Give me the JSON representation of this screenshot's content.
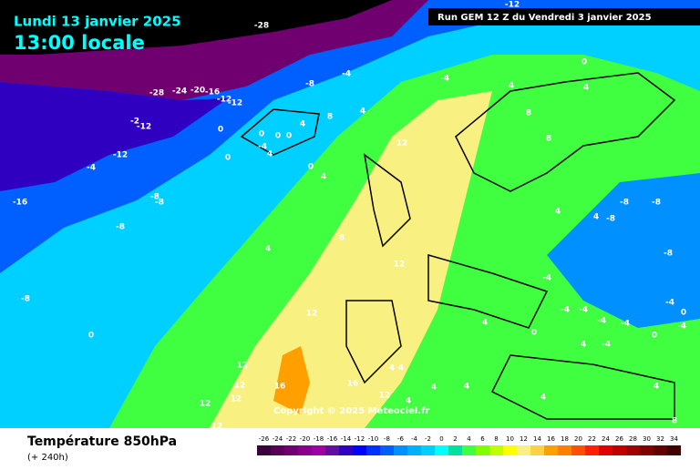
{
  "header": {
    "date": "Lundi 13 janvier 2025",
    "time": "13:00 locale",
    "run": "Run GEM 12 Z du Vendredi 3 janvier 2025"
  },
  "copyright": "Copyright © 2025 Meteociel.fr",
  "footer": {
    "title": "Température 850hPa",
    "lead": "(+ 240h)"
  },
  "legend": {
    "values": [
      -26,
      -24,
      -22,
      -20,
      -18,
      -16,
      -14,
      -12,
      -10,
      -8,
      -6,
      -4,
      -2,
      0,
      2,
      4,
      6,
      8,
      10,
      12,
      14,
      16,
      18,
      20,
      22,
      24,
      26,
      28,
      30,
      32,
      34
    ],
    "colors": [
      "#3a003a",
      "#560056",
      "#700070",
      "#8a008a",
      "#a000a0",
      "#6010a0",
      "#3000c0",
      "#0000ff",
      "#0030ff",
      "#0060ff",
      "#0090ff",
      "#00b0ff",
      "#00d0ff",
      "#00ffff",
      "#00e0a0",
      "#40ff40",
      "#80ff00",
      "#c0ff00",
      "#ffff00",
      "#f8f080",
      "#ffd040",
      "#ffa000",
      "#ff8000",
      "#ff5000",
      "#ff2000",
      "#e00000",
      "#c00000",
      "#a00000",
      "#800000",
      "#600000",
      "#400000"
    ]
  },
  "contour_labels": [
    -28,
    -28,
    -24,
    -20,
    -16,
    -12,
    -12,
    -2,
    -12,
    -12,
    -4,
    -16,
    -8,
    -8,
    -8,
    -8,
    0,
    0,
    0,
    0,
    -4,
    4,
    0,
    0,
    4,
    8,
    0,
    4,
    -8,
    -4,
    4,
    -4,
    4,
    0,
    12,
    8,
    8,
    4,
    4,
    8,
    12,
    12,
    12,
    12,
    12,
    12,
    12,
    16,
    16,
    12,
    4,
    4,
    4,
    4,
    4,
    4,
    4,
    -8,
    -8,
    -8,
    -8,
    -4,
    -4,
    -4,
    -4,
    -4,
    -4,
    0,
    -4,
    0,
    -4,
    4,
    0,
    -12,
    4,
    4,
    4,
    8
  ]
}
